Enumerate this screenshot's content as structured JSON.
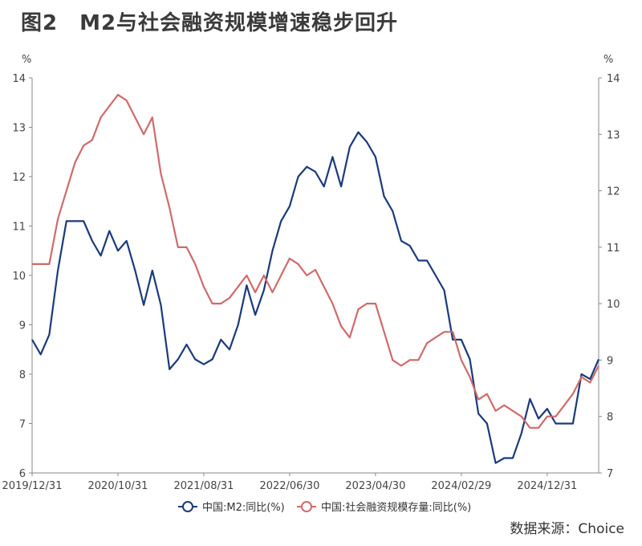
{
  "title": "图2　M2与社会融资规模增速稳步回升",
  "source": "数据来源：Choice",
  "chart_data": {
    "type": "line",
    "x": [
      "2019/12/31",
      "2020/01/31",
      "2020/02/29",
      "2020/03/31",
      "2020/04/30",
      "2020/05/31",
      "2020/06/30",
      "2020/07/31",
      "2020/08/31",
      "2020/09/30",
      "2020/10/31",
      "2020/11/30",
      "2020/12/31",
      "2021/01/31",
      "2021/02/28",
      "2021/03/31",
      "2021/04/30",
      "2021/05/31",
      "2021/06/30",
      "2021/07/31",
      "2021/08/31",
      "2021/09/30",
      "2021/10/31",
      "2021/11/30",
      "2021/12/31",
      "2022/01/31",
      "2022/02/28",
      "2022/03/31",
      "2022/04/30",
      "2022/05/31",
      "2022/06/30",
      "2022/07/31",
      "2022/08/31",
      "2022/09/30",
      "2022/10/31",
      "2022/11/30",
      "2022/12/31",
      "2023/01/31",
      "2023/02/28",
      "2023/03/31",
      "2023/04/30",
      "2023/05/31",
      "2023/06/30",
      "2023/07/31",
      "2023/08/31",
      "2023/09/30",
      "2023/10/31",
      "2023/11/30",
      "2023/12/31",
      "2024/01/31",
      "2024/02/29",
      "2024/03/31",
      "2024/04/30",
      "2024/05/31",
      "2024/06/30",
      "2024/07/31",
      "2024/08/31",
      "2024/09/30",
      "2024/10/31",
      "2024/11/30",
      "2024/12/31",
      "2025/01/31",
      "2025/02/28",
      "2025/03/31",
      "2025/04/30",
      "2025/05/31",
      "2025/06/30"
    ],
    "x_tick_labels": [
      "2019/12/31",
      "2020/10/31",
      "2021/08/31",
      "2022/06/30",
      "2023/04/30",
      "2024/02/29",
      "2024/12/31"
    ],
    "y_left": {
      "unit": "%",
      "ylim": [
        6,
        14
      ],
      "ticks": [
        6,
        7,
        8,
        9,
        10,
        11,
        12,
        13,
        14
      ]
    },
    "y_right": {
      "unit": "%",
      "ylim": [
        7,
        14
      ],
      "ticks": [
        7,
        8,
        9,
        10,
        11,
        12,
        13,
        14
      ]
    },
    "grid": false,
    "legend_position": "bottom",
    "series": [
      {
        "name": "中国:M2:同比(%)",
        "axis": "left",
        "color": "#1a3a7a",
        "values": [
          8.7,
          8.4,
          8.8,
          10.1,
          11.1,
          11.1,
          11.1,
          10.7,
          10.4,
          10.9,
          10.5,
          10.7,
          10.1,
          9.4,
          10.1,
          9.4,
          8.1,
          8.3,
          8.6,
          8.3,
          8.2,
          8.3,
          8.7,
          8.5,
          9.0,
          9.8,
          9.2,
          9.7,
          10.5,
          11.1,
          11.4,
          12.0,
          12.2,
          12.1,
          11.8,
          12.4,
          11.8,
          12.6,
          12.9,
          12.7,
          12.4,
          11.6,
          11.3,
          10.7,
          10.6,
          10.3,
          10.3,
          10.0,
          9.7,
          8.7,
          8.7,
          8.3,
          7.2,
          7.0,
          6.2,
          6.3,
          6.3,
          6.8,
          7.5,
          7.1,
          7.3,
          7.0,
          7.0,
          7.0,
          8.0,
          7.9,
          8.3
        ]
      },
      {
        "name": "中国:社会融资规模存量:同比(%)",
        "axis": "right",
        "color": "#d06a6a",
        "values": [
          10.7,
          10.7,
          10.7,
          11.5,
          12.0,
          12.5,
          12.8,
          12.9,
          13.3,
          13.5,
          13.7,
          13.6,
          13.3,
          13.0,
          13.3,
          12.3,
          11.7,
          11.0,
          11.0,
          10.7,
          10.3,
          10.0,
          10.0,
          10.1,
          10.3,
          10.5,
          10.2,
          10.5,
          10.2,
          10.5,
          10.8,
          10.7,
          10.5,
          10.6,
          10.3,
          10.0,
          9.6,
          9.4,
          9.9,
          10.0,
          10.0,
          9.5,
          9.0,
          8.9,
          9.0,
          9.0,
          9.3,
          9.4,
          9.5,
          9.5,
          9.0,
          8.7,
          8.3,
          8.4,
          8.1,
          8.2,
          8.1,
          8.0,
          7.8,
          7.8,
          8.0,
          8.0,
          8.2,
          8.4,
          8.7,
          8.6,
          8.9
        ]
      }
    ]
  }
}
